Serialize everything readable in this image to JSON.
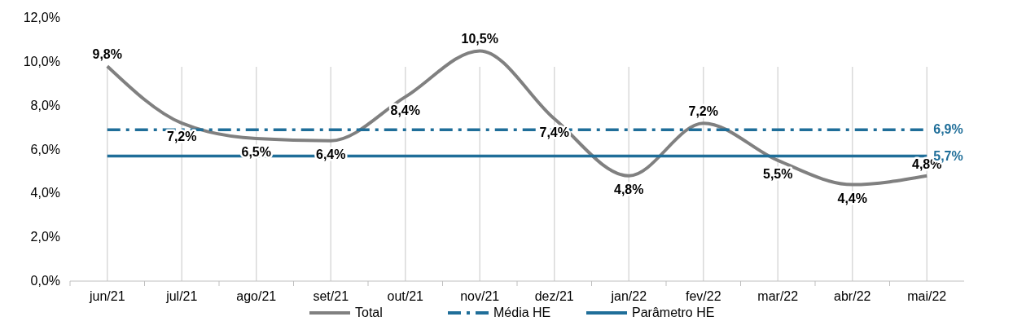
{
  "chart_data": {
    "type": "line",
    "categories": [
      "jun/21",
      "jul/21",
      "ago/21",
      "set/21",
      "out/21",
      "nov/21",
      "dez/21",
      "jan/22",
      "fev/22",
      "mar/22",
      "abr/22",
      "mai/22"
    ],
    "series": [
      {
        "name": "Total",
        "color": "#808080",
        "line_style": "solid",
        "values": [
          9.8,
          7.2,
          6.5,
          6.4,
          8.4,
          10.5,
          7.4,
          4.8,
          7.2,
          5.5,
          4.4,
          4.8
        ],
        "value_labels": [
          "9,8%",
          "7,2%",
          "6,5%",
          "6,4%",
          "8,4%",
          "10,5%",
          "7,4%",
          "4,8%",
          "7,2%",
          "5,5%",
          "4,4%",
          "4,8%"
        ]
      },
      {
        "name": "Média HE",
        "color": "#1f6e99",
        "line_style": "dashed",
        "values": [
          6.9,
          6.9,
          6.9,
          6.9,
          6.9,
          6.9,
          6.9,
          6.9,
          6.9,
          6.9,
          6.9,
          6.9
        ],
        "value_labels": [
          null,
          null,
          null,
          null,
          null,
          null,
          null,
          null,
          null,
          null,
          null,
          "6,9%"
        ]
      },
      {
        "name": "Parâmetro HE",
        "color": "#1f6e99",
        "line_style": "solid",
        "values": [
          5.7,
          5.7,
          5.7,
          5.7,
          5.7,
          5.7,
          5.7,
          5.7,
          5.7,
          5.7,
          5.7,
          5.7
        ],
        "value_labels": [
          null,
          null,
          null,
          null,
          null,
          null,
          null,
          null,
          null,
          null,
          null,
          "5,7%"
        ]
      }
    ],
    "ylim": [
      0,
      12
    ],
    "yticks": [
      {
        "value": 0,
        "label": "0,0%"
      },
      {
        "value": 2,
        "label": "2,0%"
      },
      {
        "value": 4,
        "label": "4,0%"
      },
      {
        "value": 6,
        "label": "6,0%"
      },
      {
        "value": 8,
        "label": "8,0%"
      },
      {
        "value": 10,
        "label": "10,0%"
      },
      {
        "value": 12,
        "label": "12,0%"
      }
    ],
    "grid": "x",
    "legend": "bottom",
    "marker": "none"
  }
}
